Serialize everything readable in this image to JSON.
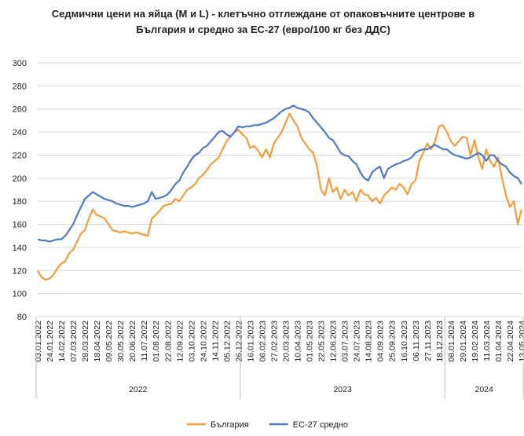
{
  "chart_data": {
    "type": "line",
    "title": [
      "Седмични цени на яйца (М и L) - клетъчно отглеждане от опаковъчните центрове в",
      "България и средно за ЕС-27 (евро/100 кг без ДДС)"
    ],
    "categories": [
      "03.01.2022",
      null,
      null,
      "24.01.2022",
      null,
      null,
      "14.02.2022",
      null,
      null,
      "07.03.2022",
      null,
      null,
      "28.03.2022",
      null,
      null,
      "18.04.2022",
      null,
      null,
      "09.05.2022",
      null,
      null,
      "30.05.2022",
      null,
      null,
      "20.06.2022",
      null,
      null,
      "11.07.2022",
      null,
      null,
      "01.08.2022",
      null,
      null,
      "22.08.2022",
      null,
      null,
      "12.09.2022",
      null,
      null,
      "03.10.2022",
      null,
      null,
      "24.10.2022",
      null,
      null,
      "14.11.2022",
      null,
      null,
      "05.12.2022",
      null,
      null,
      "26.12.2022",
      null,
      null,
      "16.01.2023",
      null,
      null,
      "06.02.2023",
      null,
      null,
      "27.02.2023",
      null,
      null,
      "20.03.2023",
      null,
      null,
      "10.04.2023",
      null,
      null,
      "01.05.2023",
      null,
      null,
      "22.05.2023",
      null,
      null,
      "12.06.2023",
      null,
      null,
      "03.07.2023",
      null,
      null,
      "24.07.2023",
      null,
      null,
      "14.08.2023",
      null,
      null,
      "04.09.2023",
      null,
      null,
      "25.09.2023",
      null,
      null,
      "16.10.2023",
      null,
      null,
      "06.11.2023",
      null,
      null,
      "27.11.2023",
      null,
      null,
      "18.12.2023",
      null,
      null,
      "08.01.2024",
      null,
      null,
      "29.01.2024",
      null,
      null,
      "19.02.2024",
      null,
      null,
      "11.03.2024",
      null,
      null,
      "01.04.2024",
      null,
      null,
      "22.04.2024",
      null,
      null,
      "13.05.2024"
    ],
    "year_labels": [
      "2022",
      "2023",
      "2024"
    ],
    "series": [
      {
        "name": "България",
        "color": "#f59d3d",
        "values": [
          120,
          114,
          112,
          113,
          116,
          122,
          126,
          128,
          135,
          138,
          145,
          152,
          155,
          165,
          173,
          168,
          167,
          165,
          160,
          155,
          154,
          153,
          154,
          153,
          152,
          153,
          152,
          151,
          150,
          165,
          168,
          172,
          176,
          177,
          178,
          182,
          180,
          185,
          190,
          192,
          195,
          200,
          203,
          207,
          212,
          215,
          218,
          225,
          232,
          236,
          240,
          242,
          238,
          235,
          226,
          228,
          224,
          218,
          225,
          218,
          230,
          235,
          240,
          248,
          256,
          250,
          245,
          235,
          230,
          225,
          222,
          210,
          190,
          185,
          200,
          188,
          192,
          182,
          190,
          185,
          188,
          180,
          190,
          186,
          185,
          180,
          183,
          178,
          185,
          188,
          192,
          190,
          195,
          192,
          186,
          195,
          198,
          215,
          222,
          230,
          225,
          232,
          245,
          246,
          240,
          232,
          228,
          232,
          236,
          235,
          220,
          233,
          218,
          208,
          225,
          215,
          210,
          218,
          200,
          185,
          175,
          180,
          160,
          173
        ]
      },
      {
        "name": "ЕС-27 средно",
        "color": "#4f7ac7",
        "values": [
          147,
          146,
          146,
          145,
          146,
          147,
          147,
          150,
          155,
          160,
          168,
          175,
          182,
          185,
          188,
          186,
          184,
          182,
          181,
          180,
          178,
          177,
          176,
          176,
          175,
          176,
          177,
          178,
          180,
          188,
          182,
          183,
          184,
          186,
          190,
          195,
          198,
          205,
          210,
          216,
          220,
          222,
          226,
          228,
          232,
          236,
          240,
          241,
          238,
          236,
          240,
          245,
          244,
          245,
          245,
          246,
          246,
          247,
          248,
          250,
          252,
          255,
          258,
          260,
          261,
          263,
          261,
          260,
          259,
          257,
          252,
          248,
          244,
          240,
          235,
          233,
          228,
          222,
          220,
          219,
          215,
          212,
          205,
          200,
          198,
          205,
          208,
          210,
          200,
          208,
          210,
          212,
          213,
          215,
          216,
          218,
          222,
          224,
          225,
          225,
          227,
          229,
          227,
          225,
          225,
          222,
          220,
          219,
          218,
          217,
          218,
          220,
          222,
          220,
          215,
          220,
          220,
          215,
          212,
          210,
          205,
          202,
          200,
          195
        ]
      }
    ],
    "ylim": [
      80,
      300
    ],
    "yticks": [
      80,
      100,
      120,
      140,
      160,
      180,
      200,
      220,
      240,
      260,
      280,
      300
    ],
    "grid": true
  }
}
